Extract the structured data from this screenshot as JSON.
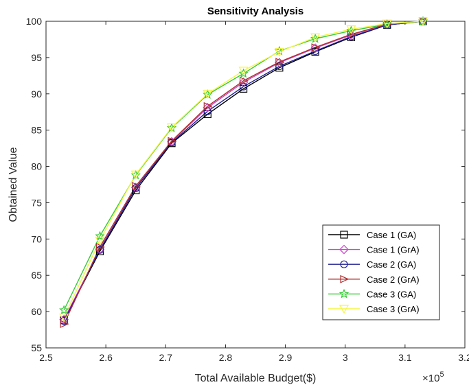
{
  "chart_data": {
    "type": "line",
    "title": "Sensitivity Analysis",
    "xlabel": "Total Available Budget($)",
    "ylabel": "Obtained Value",
    "x_exponent_label": "×10",
    "x_exponent_power": "5",
    "xlim": [
      2.5,
      3.2
    ],
    "ylim": [
      55,
      100
    ],
    "xticks": [
      2.5,
      2.6,
      2.7,
      2.8,
      2.9,
      3.0,
      3.1,
      3.2
    ],
    "xtick_labels": [
      "2.5",
      "2.6",
      "2.7",
      "2.8",
      "2.9",
      "3",
      "3.1",
      "3.2"
    ],
    "yticks": [
      55,
      60,
      65,
      70,
      75,
      80,
      85,
      90,
      95,
      100
    ],
    "ytick_labels": [
      "55",
      "60",
      "65",
      "70",
      "75",
      "80",
      "85",
      "90",
      "95",
      "100"
    ],
    "grid": false,
    "legend_position": "bottom-right",
    "x": [
      2.53,
      2.59,
      2.65,
      2.71,
      2.77,
      2.83,
      2.89,
      2.95,
      3.01,
      3.07,
      3.13
    ],
    "series": [
      {
        "name": "Case 1 (GA)",
        "color": "#000000",
        "marker": "square",
        "values": [
          58.8,
          68.3,
          76.7,
          83.2,
          87.2,
          90.7,
          93.6,
          95.8,
          97.8,
          99.5,
          100
        ]
      },
      {
        "name": "Case 1 (GrA)",
        "color": "#cc44cc",
        "marker": "diamond",
        "values": [
          58.9,
          68.6,
          77.1,
          83.4,
          88.1,
          91.6,
          94.3,
          96.3,
          98.1,
          99.6,
          100
        ]
      },
      {
        "name": "Case 2 (GA)",
        "color": "#1f1f8f",
        "marker": "circle",
        "values": [
          58.7,
          68.5,
          77.0,
          83.3,
          87.6,
          91.0,
          93.8,
          95.9,
          97.9,
          99.5,
          100
        ]
      },
      {
        "name": "Case 2 (GrA)",
        "color": "#b03030",
        "marker": "triangle-right",
        "values": [
          58.3,
          68.9,
          77.3,
          83.5,
          88.3,
          91.8,
          94.4,
          96.4,
          98.2,
          99.6,
          100
        ]
      },
      {
        "name": "Case 3 (GA)",
        "color": "#33cc33",
        "marker": "star",
        "values": [
          60.2,
          70.4,
          78.8,
          85.3,
          89.9,
          92.8,
          95.9,
          97.6,
          98.7,
          99.6,
          100
        ]
      },
      {
        "name": "Case 3 (GrA)",
        "color": "#f5f545",
        "marker": "triangle-down",
        "values": [
          59.2,
          69.8,
          78.9,
          85.4,
          90.0,
          93.2,
          95.8,
          97.8,
          98.9,
          99.7,
          100
        ]
      }
    ]
  }
}
